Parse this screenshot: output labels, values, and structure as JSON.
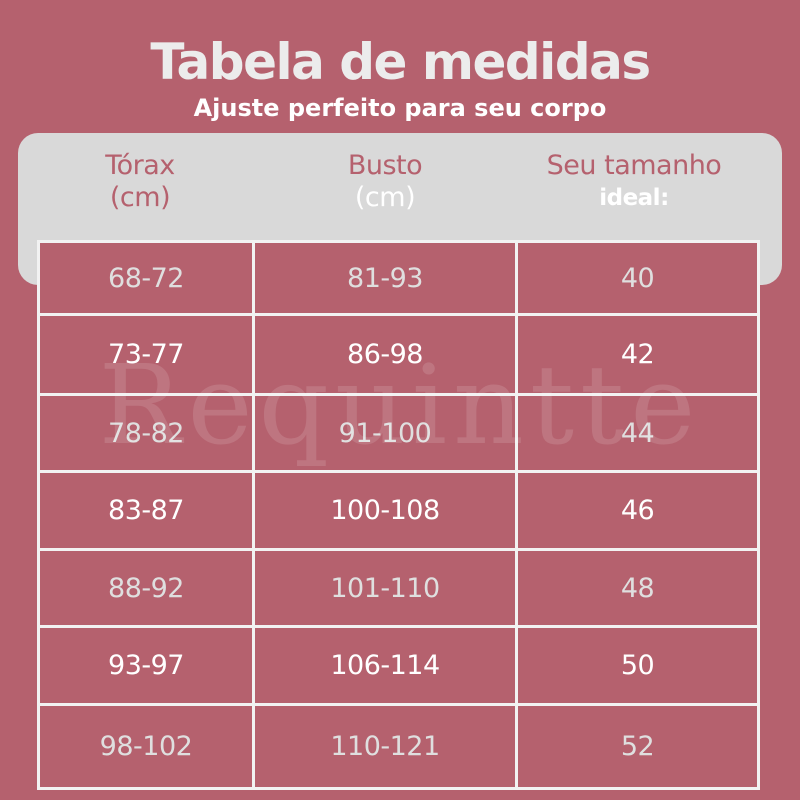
{
  "title": "Tabela de medidas",
  "subtitle": "Ajuste perfeito para seu corpo",
  "headers": {
    "torax": [
      "Tórax",
      "(cm)"
    ],
    "busto": [
      "Busto",
      "(cm)"
    ],
    "tamanho": [
      "Seu tamanho",
      "ideal:"
    ]
  },
  "rows": [
    [
      "68-72",
      "81-93",
      "40"
    ],
    [
      "73-77",
      "86-98",
      "42"
    ],
    [
      "78-82",
      "91-100",
      "44"
    ],
    [
      "83-87",
      "100-108",
      "46"
    ],
    [
      "88-92",
      "101-110",
      "48"
    ],
    [
      "93-97",
      "106-114",
      "50"
    ],
    [
      "98-102",
      "110-121",
      "52"
    ]
  ],
  "watermark": "Requintte",
  "colors": {
    "background": "#b5616e",
    "header_box": "#d9d9d9",
    "grid_lines": "#f2f2f2"
  }
}
